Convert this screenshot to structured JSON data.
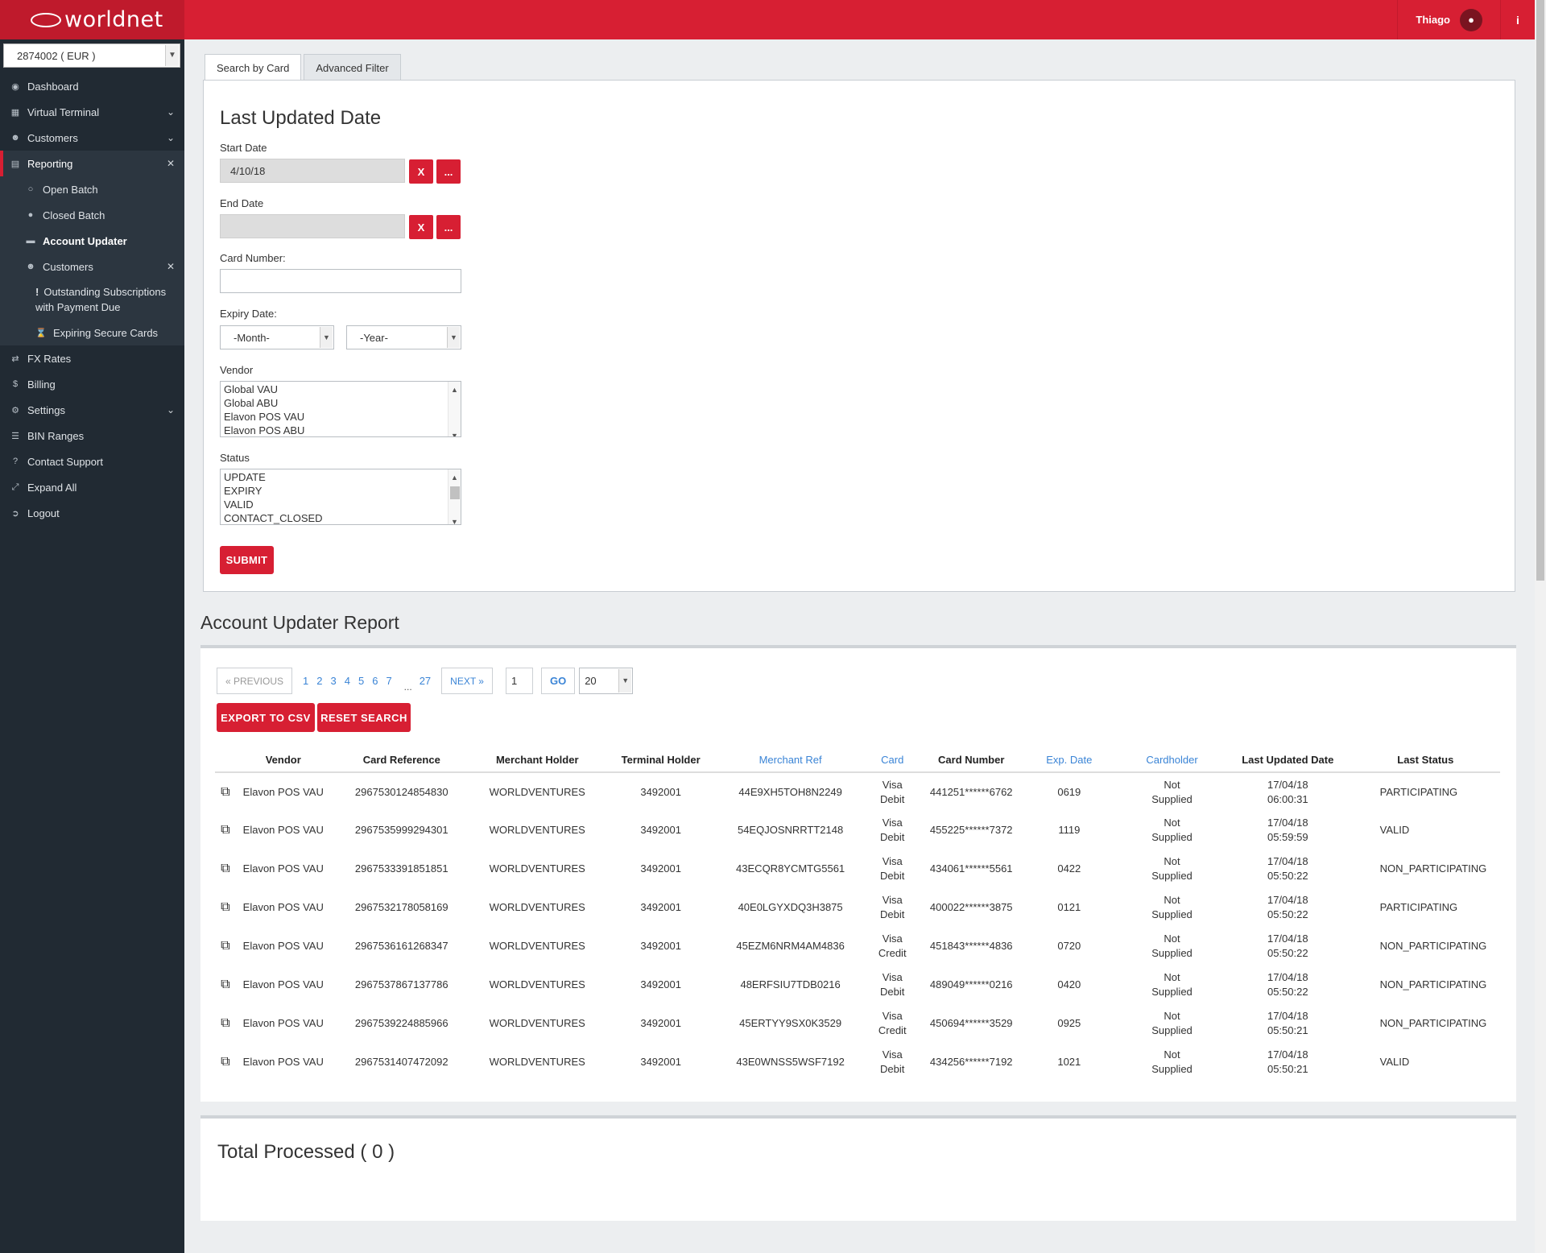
{
  "brand": {
    "logo_text": "worldnet"
  },
  "header": {
    "user_name": "Thiago"
  },
  "sidebar": {
    "merchant": "2874002 ( EUR )",
    "items": [
      {
        "label": "Dashboard"
      },
      {
        "label": "Virtual Terminal"
      },
      {
        "label": "Customers"
      },
      {
        "label": "Reporting"
      },
      {
        "label": "Open Batch"
      },
      {
        "label": "Closed Batch"
      },
      {
        "label": "Account Updater"
      },
      {
        "label": "Customers"
      },
      {
        "label": "Outstanding Subscriptions with Payment Due"
      },
      {
        "label": "Expiring Secure Cards"
      },
      {
        "label": "FX Rates"
      },
      {
        "label": "Billing"
      },
      {
        "label": "Settings"
      },
      {
        "label": "BIN Ranges"
      },
      {
        "label": "Contact Support"
      },
      {
        "label": "Expand All"
      },
      {
        "label": "Logout"
      }
    ]
  },
  "tabs": [
    "Search by Card",
    "Advanced Filter"
  ],
  "filter": {
    "title": "Last Updated Date",
    "start_date_label": "Start Date",
    "start_date_value": "4/10/18",
    "end_date_label": "End Date",
    "end_date_value": "",
    "clear_label": "X",
    "picker_label": "...",
    "card_number_label": "Card Number:",
    "expiry_label": "Expiry Date:",
    "month_placeholder": "-Month-",
    "year_placeholder": "-Year-",
    "vendor_label": "Vendor",
    "vendor_options": [
      "Global VAU",
      "Global ABU",
      "Elavon POS VAU",
      "Elavon POS ABU"
    ],
    "status_label": "Status",
    "status_options": [
      "UPDATE",
      "EXPIRY",
      "VALID",
      "CONTACT_CLOSED"
    ],
    "submit_label": "SUBMIT"
  },
  "report": {
    "title": "Account Updater Report",
    "prev_label": "« PREVIOUS",
    "pages": [
      "1",
      "2",
      "3",
      "4",
      "5",
      "6",
      "7"
    ],
    "ellipsis": "...",
    "last_page": "27",
    "next_label": "NEXT »",
    "page_input": "1",
    "go_label": "GO",
    "page_size": "20",
    "export_label": "EXPORT TO CSV",
    "reset_label": "RESET SEARCH",
    "columns": [
      "Vendor",
      "Card Reference",
      "Merchant Holder",
      "Terminal Holder",
      "Merchant Ref",
      "Card",
      "Card Number",
      "Exp. Date",
      "Cardholder",
      "Last Updated Date",
      "Last Status"
    ],
    "rows": [
      {
        "vendor": "Elavon POS VAU",
        "card_ref": "2967530124854830",
        "merchant_holder": "WORLDVENTURES",
        "terminal_holder": "3492001",
        "merchant_ref": "44E9XH5TOH8N2249",
        "card_l1": "Visa",
        "card_l2": "Debit",
        "card_number": "441251******6762",
        "exp": "0619",
        "holder_l1": "Not",
        "holder_l2": "Supplied",
        "date": "17/04/18",
        "time": "06:00:31",
        "status": "PARTICIPATING"
      },
      {
        "vendor": "Elavon POS VAU",
        "card_ref": "2967535999294301",
        "merchant_holder": "WORLDVENTURES",
        "terminal_holder": "3492001",
        "merchant_ref": "54EQJOSNRRTT2148",
        "card_l1": "Visa",
        "card_l2": "Debit",
        "card_number": "455225******7372",
        "exp": "1119",
        "holder_l1": "Not",
        "holder_l2": "Supplied",
        "date": "17/04/18",
        "time": "05:59:59",
        "status": "VALID"
      },
      {
        "vendor": "Elavon POS VAU",
        "card_ref": "2967533391851851",
        "merchant_holder": "WORLDVENTURES",
        "terminal_holder": "3492001",
        "merchant_ref": "43ECQR8YCMTG5561",
        "card_l1": "Visa",
        "card_l2": "Debit",
        "card_number": "434061******5561",
        "exp": "0422",
        "holder_l1": "Not",
        "holder_l2": "Supplied",
        "date": "17/04/18",
        "time": "05:50:22",
        "status": "NON_PARTICIPATING"
      },
      {
        "vendor": "Elavon POS VAU",
        "card_ref": "2967532178058169",
        "merchant_holder": "WORLDVENTURES",
        "terminal_holder": "3492001",
        "merchant_ref": "40E0LGYXDQ3H3875",
        "card_l1": "Visa",
        "card_l2": "Debit",
        "card_number": "400022******3875",
        "exp": "0121",
        "holder_l1": "Not",
        "holder_l2": "Supplied",
        "date": "17/04/18",
        "time": "05:50:22",
        "status": "PARTICIPATING"
      },
      {
        "vendor": "Elavon POS VAU",
        "card_ref": "2967536161268347",
        "merchant_holder": "WORLDVENTURES",
        "terminal_holder": "3492001",
        "merchant_ref": "45EZM6NRM4AM4836",
        "card_l1": "Visa",
        "card_l2": "Credit",
        "card_number": "451843******4836",
        "exp": "0720",
        "holder_l1": "Not",
        "holder_l2": "Supplied",
        "date": "17/04/18",
        "time": "05:50:22",
        "status": "NON_PARTICIPATING"
      },
      {
        "vendor": "Elavon POS VAU",
        "card_ref": "2967537867137786",
        "merchant_holder": "WORLDVENTURES",
        "terminal_holder": "3492001",
        "merchant_ref": "48ERFSIU7TDB0216",
        "card_l1": "Visa",
        "card_l2": "Debit",
        "card_number": "489049******0216",
        "exp": "0420",
        "holder_l1": "Not",
        "holder_l2": "Supplied",
        "date": "17/04/18",
        "time": "05:50:22",
        "status": "NON_PARTICIPATING"
      },
      {
        "vendor": "Elavon POS VAU",
        "card_ref": "2967539224885966",
        "merchant_holder": "WORLDVENTURES",
        "terminal_holder": "3492001",
        "merchant_ref": "45ERTYY9SX0K3529",
        "card_l1": "Visa",
        "card_l2": "Credit",
        "card_number": "450694******3529",
        "exp": "0925",
        "holder_l1": "Not",
        "holder_l2": "Supplied",
        "date": "17/04/18",
        "time": "05:50:21",
        "status": "NON_PARTICIPATING"
      },
      {
        "vendor": "Elavon POS VAU",
        "card_ref": "2967531407472092",
        "merchant_holder": "WORLDVENTURES",
        "terminal_holder": "3492001",
        "merchant_ref": "43E0WNSS5WSF7192",
        "card_l1": "Visa",
        "card_l2": "Debit",
        "card_number": "434256******7192",
        "exp": "1021",
        "holder_l1": "Not",
        "holder_l2": "Supplied",
        "date": "17/04/18",
        "time": "05:50:21",
        "status": "VALID"
      }
    ]
  },
  "total": {
    "title": "Total Processed ( 0 )"
  },
  "colors": {
    "brand_red": "#d71f33",
    "sidebar": "#212a33",
    "link_blue": "#3a84d6"
  }
}
